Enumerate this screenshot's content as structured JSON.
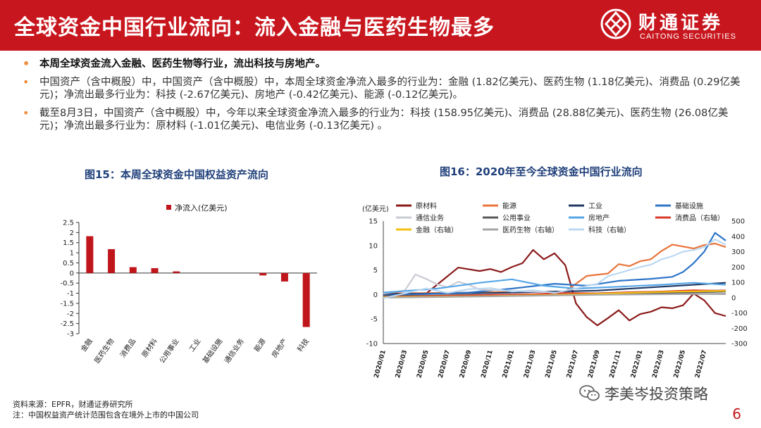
{
  "header": {
    "title": "全球资金中国行业流向：流入金融与医药生物最多",
    "logo_cn": "财通证券",
    "logo_en": "CAITONG SECURITIES"
  },
  "bullets": [
    "本周全球资金流入金融、医药生物等行业，流出科技与房地产。",
    "中国资产（含中概股）中，中国资产（含中概股）中，本周全球资金净流入最多的行业为：金融 (1.82亿美元)、医药生物 (1.18亿美元)、消费品 (0.29亿美元)；净流出最多行业为：科技 (-2.67亿美元)、房地产 (-0.42亿美元)、能源 (-0.12亿美元)。",
    "截至8月3日，中国资产（含中概股）中，今年以来全球资金净流入最多的行业为：科技 (158.95亿美元)、消费品 (28.88亿美元)、医药生物 (26.08亿美元)；净流出最多行业为：原材料 (-1.01亿美元)、电信业务 (-0.13亿美元) 。"
  ],
  "chart_data": [
    {
      "type": "bar",
      "title": "图15：本周全球资金中国权益资产流向",
      "legend": "净流入(亿美元)",
      "color": "#c0151b",
      "categories": [
        "金融",
        "医药生物",
        "消费品",
        "原材料",
        "公用事业",
        "工业",
        "基础设施",
        "通信业务",
        "能源",
        "房地产",
        "科技"
      ],
      "values": [
        1.82,
        1.18,
        0.29,
        0.24,
        0.08,
        0,
        0,
        0,
        -0.12,
        -0.42,
        -2.67
      ],
      "ylim": [
        -3,
        2.5
      ],
      "yticks": [
        "2.5",
        "2",
        "1.5",
        "1",
        "0.5",
        "0",
        "-0.5",
        "-1",
        "-1.5",
        "-2",
        "-2.5",
        "-3"
      ],
      "grid": false
    },
    {
      "type": "line",
      "title": "图16：2020年至今全球资金中国行业流向",
      "ylabel_left": "(亿美元)",
      "ylim_left": [
        -10,
        15
      ],
      "ylim_right": [
        -300,
        500
      ],
      "yticks_left": [
        "15",
        "10",
        "5",
        "0",
        "-5",
        "-10"
      ],
      "yticks_right": [
        "500",
        "400",
        "300",
        "200",
        "100",
        "0",
        "-100",
        "-200",
        "-300"
      ],
      "x_ticks": [
        "2020/01",
        "2020/03",
        "2020/05",
        "2020/07",
        "2020/09",
        "2020/11",
        "2021/01",
        "2021/03",
        "2021/05",
        "2021/07",
        "2021/09",
        "2021/11",
        "2022/01",
        "2022/03",
        "2022/05",
        "2022/07"
      ],
      "legend_position": "top",
      "series": [
        {
          "name": "原材料",
          "axis": "left",
          "color": "#8b1a1a",
          "points": [
            [
              0,
              0.3
            ],
            [
              4,
              0.2
            ],
            [
              7,
              5.5
            ],
            [
              9,
              4.8
            ],
            [
              10,
              5.2
            ],
            [
              11,
              4.6
            ],
            [
              12,
              5.6
            ],
            [
              13,
              6.4
            ],
            [
              14,
              9.1
            ],
            [
              15,
              7.2
            ],
            [
              16,
              8.4
            ],
            [
              17,
              6.0
            ],
            [
              18,
              -1.8
            ],
            [
              19,
              -4.6
            ],
            [
              20,
              -6.3
            ],
            [
              21,
              -4.8
            ],
            [
              22,
              -3.2
            ],
            [
              23,
              -5.3
            ],
            [
              24,
              -4.0
            ],
            [
              25,
              -3.5
            ],
            [
              26,
              -2.6
            ],
            [
              27,
              -2.8
            ],
            [
              28,
              -2.2
            ],
            [
              29,
              0.2
            ],
            [
              30,
              -1.2
            ],
            [
              31,
              -3.8
            ],
            [
              32,
              -4.4
            ]
          ]
        },
        {
          "name": "能源",
          "axis": "left",
          "color": "#e8743b",
          "points": [
            [
              0,
              0.2
            ],
            [
              12,
              0.5
            ],
            [
              17,
              0.6
            ],
            [
              19,
              3.8
            ],
            [
              21,
              4.3
            ],
            [
              22,
              6.2
            ],
            [
              23,
              5.8
            ],
            [
              24,
              6.8
            ],
            [
              25,
              7.2
            ],
            [
              26,
              8.9
            ],
            [
              27,
              10.2
            ],
            [
              28,
              9.8
            ],
            [
              29,
              9.4
            ],
            [
              30,
              10.1
            ],
            [
              31,
              10.4
            ],
            [
              32,
              9.7
            ]
          ]
        },
        {
          "name": "工业",
          "axis": "left",
          "color": "#1f3864",
          "points": [
            [
              0,
              0.1
            ],
            [
              10,
              0.3
            ],
            [
              20,
              0.8
            ],
            [
              26,
              1.6
            ],
            [
              32,
              2.4
            ]
          ]
        },
        {
          "name": "基础设施",
          "axis": "left",
          "color": "#2e75c8",
          "points": [
            [
              0,
              -0.2
            ],
            [
              8,
              0.4
            ],
            [
              12,
              1.2
            ],
            [
              16,
              2.2
            ],
            [
              19,
              1.8
            ],
            [
              22,
              2.8
            ],
            [
              25,
              3.2
            ],
            [
              27,
              3.6
            ],
            [
              28,
              4.6
            ],
            [
              29,
              6.4
            ],
            [
              30,
              8.8
            ],
            [
              31,
              12.6
            ],
            [
              32,
              11.0
            ]
          ]
        },
        {
          "name": "通信业务",
          "axis": "left",
          "color": "#c9cbd3",
          "points": [
            [
              0,
              0.2
            ],
            [
              2,
              0.8
            ],
            [
              3,
              4.1
            ],
            [
              4,
              3.2
            ],
            [
              5,
              2.1
            ],
            [
              6,
              1.5
            ],
            [
              7,
              2.6
            ],
            [
              8,
              2.0
            ],
            [
              9,
              1.0
            ],
            [
              11,
              0.8
            ],
            [
              14,
              0.6
            ],
            [
              18,
              0.2
            ],
            [
              22,
              0.4
            ],
            [
              26,
              0.6
            ],
            [
              32,
              0.9
            ]
          ]
        },
        {
          "name": "公用事业",
          "axis": "left",
          "color": "#595959",
          "points": [
            [
              0,
              -0.3
            ],
            [
              8,
              -0.2
            ],
            [
              16,
              -0.1
            ],
            [
              24,
              0.2
            ],
            [
              32,
              0.6
            ]
          ]
        },
        {
          "name": "房地产",
          "axis": "left",
          "color": "#56a6e6",
          "points": [
            [
              0,
              0.4
            ],
            [
              5,
              1.2
            ],
            [
              9,
              2.4
            ],
            [
              12,
              3.1
            ],
            [
              15,
              1.8
            ],
            [
              18,
              1.2
            ],
            [
              22,
              1.6
            ],
            [
              26,
              2.0
            ],
            [
              29,
              2.4
            ],
            [
              32,
              2.0
            ]
          ]
        },
        {
          "name": "消费品（右轴）",
          "axis": "right",
          "color": "#d9382a",
          "points": [
            [
              0,
              5
            ],
            [
              8,
              15
            ],
            [
              14,
              22
            ],
            [
              17,
              30
            ],
            [
              20,
              28
            ],
            [
              23,
              35
            ],
            [
              26,
              40
            ],
            [
              29,
              48
            ],
            [
              31,
              45
            ],
            [
              32,
              46
            ]
          ]
        },
        {
          "name": "金融（右轴）",
          "axis": "right",
          "color": "#f2c010",
          "points": [
            [
              0,
              3
            ],
            [
              10,
              10
            ],
            [
              16,
              18
            ],
            [
              20,
              25
            ],
            [
              25,
              35
            ],
            [
              28,
              40
            ],
            [
              32,
              44
            ]
          ]
        },
        {
          "name": "医药生物（右轴）",
          "axis": "right",
          "color": "#a6a6a6",
          "points": [
            [
              0,
              0
            ],
            [
              8,
              6
            ],
            [
              14,
              12
            ],
            [
              20,
              18
            ],
            [
              26,
              22
            ],
            [
              32,
              26
            ]
          ]
        },
        {
          "name": "科技（右轴）",
          "axis": "right",
          "color": "#bcd8f2",
          "points": [
            [
              0,
              -5
            ],
            [
              4,
              60
            ],
            [
              6,
              30
            ],
            [
              8,
              55
            ],
            [
              10,
              62
            ],
            [
              12,
              40
            ],
            [
              14,
              48
            ],
            [
              16,
              30
            ],
            [
              18,
              60
            ],
            [
              20,
              90
            ],
            [
              21,
              140
            ],
            [
              22,
              160
            ],
            [
              23,
              180
            ],
            [
              24,
              200
            ],
            [
              25,
              215
            ],
            [
              26,
              250
            ],
            [
              27,
              270
            ],
            [
              28,
              300
            ],
            [
              29,
              310
            ],
            [
              30,
              330
            ],
            [
              31,
              380
            ],
            [
              32,
              345
            ]
          ]
        }
      ]
    }
  ],
  "footer": {
    "source": "资料来源：EPFR，财通证券研究所",
    "note": "注：中国权益资产统计范围包含在境外上市的中国公司",
    "wechat": "李美岑投资策略",
    "page": "6"
  }
}
